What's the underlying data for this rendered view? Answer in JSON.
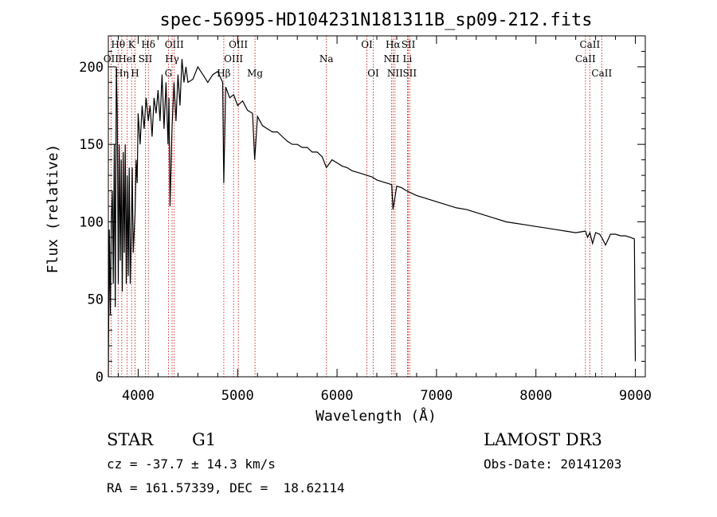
{
  "chart_data": {
    "type": "line",
    "title": "spec-56995-HD104231N181311B_sp09-212.fits",
    "xlabel": "Wavelength (Å)",
    "ylabel": "Flux (relative)",
    "xlim": [
      3700,
      9100
    ],
    "ylim": [
      0,
      220
    ],
    "xticks": [
      4000,
      5000,
      6000,
      7000,
      8000,
      9000
    ],
    "yticks": [
      0,
      50,
      100,
      150,
      200
    ],
    "grid": false,
    "series": [
      {
        "name": "spectrum",
        "x": [
          3700,
          3710,
          3720,
          3730,
          3740,
          3750,
          3760,
          3770,
          3780,
          3790,
          3800,
          3810,
          3820,
          3830,
          3840,
          3850,
          3860,
          3870,
          3880,
          3890,
          3900,
          3910,
          3920,
          3933,
          3940,
          3950,
          3968,
          3980,
          3990,
          4000,
          4020,
          4040,
          4060,
          4080,
          4101,
          4120,
          4140,
          4160,
          4180,
          4200,
          4220,
          4240,
          4260,
          4280,
          4300,
          4310,
          4320,
          4340,
          4360,
          4380,
          4400,
          4420,
          4440,
          4460,
          4480,
          4500,
          4550,
          4600,
          4650,
          4700,
          4750,
          4800,
          4850,
          4861,
          4880,
          4920,
          4960,
          5000,
          5050,
          5100,
          5150,
          5172,
          5200,
          5250,
          5300,
          5350,
          5400,
          5450,
          5500,
          5550,
          5600,
          5650,
          5700,
          5750,
          5800,
          5850,
          5893,
          5950,
          6000,
          6050,
          6100,
          6150,
          6200,
          6250,
          6300,
          6350,
          6400,
          6450,
          6500,
          6550,
          6563,
          6600,
          6650,
          6700,
          6800,
          6900,
          7000,
          7100,
          7200,
          7300,
          7400,
          7500,
          7600,
          7700,
          7800,
          7900,
          8000,
          8100,
          8200,
          8300,
          8400,
          8498,
          8520,
          8542,
          8570,
          8600,
          8640,
          8662,
          8700,
          8750,
          8800,
          8850,
          8900,
          8950,
          8990,
          9000
        ],
        "values": [
          0,
          95,
          40,
          100,
          120,
          60,
          150,
          45,
          200,
          170,
          60,
          150,
          75,
          140,
          55,
          145,
          80,
          150,
          60,
          130,
          65,
          135,
          60,
          100,
          135,
          80,
          105,
          140,
          125,
          170,
          150,
          175,
          160,
          180,
          165,
          175,
          155,
          180,
          170,
          185,
          165,
          195,
          160,
          190,
          150,
          180,
          110,
          160,
          190,
          165,
          195,
          175,
          205,
          190,
          200,
          190,
          192,
          200,
          195,
          190,
          195,
          197,
          190,
          125,
          187,
          180,
          182,
          175,
          178,
          172,
          170,
          140,
          168,
          162,
          160,
          158,
          158,
          155,
          152,
          150,
          150,
          148,
          148,
          145,
          145,
          142,
          135,
          140,
          138,
          136,
          135,
          133,
          132,
          131,
          130,
          129,
          127,
          126,
          125,
          124,
          108,
          123,
          122,
          120,
          117,
          115,
          113,
          111,
          109,
          108,
          106,
          104,
          102,
          100,
          99,
          98,
          97,
          96,
          95,
          94,
          93,
          94,
          90,
          93,
          86,
          93,
          92,
          90,
          85,
          92,
          92,
          91,
          91,
          90,
          89,
          10
        ]
      }
    ],
    "lines": {
      "row1": [
        {
          "label": "Hθ",
          "x": 3798
        },
        {
          "label": "K",
          "x": 3934
        },
        {
          "label": "Hδ",
          "x": 4102
        },
        {
          "label": "OIII",
          "x": 4363
        },
        {
          "label": "OIII",
          "x": 5007
        },
        {
          "label": "OI",
          "x": 6300
        },
        {
          "label": "Hα",
          "x": 6563
        },
        {
          "label": "SII",
          "x": 6717
        },
        {
          "label": "CaII",
          "x": 8542
        }
      ],
      "row2": [
        {
          "label": "OII",
          "x": 3727
        },
        {
          "label": "HeI",
          "x": 3889
        },
        {
          "label": "SII",
          "x": 4072
        },
        {
          "label": "Hγ",
          "x": 4341
        },
        {
          "label": "OIII",
          "x": 4959
        },
        {
          "label": "Na",
          "x": 5893
        },
        {
          "label": "NII",
          "x": 6548
        },
        {
          "label": "Li",
          "x": 6708
        },
        {
          "label": "CaII",
          "x": 8498
        }
      ],
      "row3": [
        {
          "label": "Hη",
          "x": 3835
        },
        {
          "label": "H",
          "x": 3968
        },
        {
          "label": "G",
          "x": 4304
        },
        {
          "label": "Hβ",
          "x": 4861
        },
        {
          "label": "Mg",
          "x": 5175
        },
        {
          "label": "OI",
          "x": 6364
        },
        {
          "label": "NII",
          "x": 6583
        },
        {
          "label": "SII",
          "x": 6731
        },
        {
          "label": "CaII",
          "x": 8662
        }
      ]
    }
  },
  "info": {
    "object_class": "STAR",
    "subclass": "G1",
    "survey": "LAMOST DR3",
    "redshift_line": "cz = -37.7 ± 14.3 km/s",
    "obs_date_line": "Obs-Date: 20141203",
    "coords_line": "RA = 161.57339, DEC =  18.62114"
  },
  "colors": {
    "spectrum": "#000000",
    "line_markers": "#cc0000",
    "axes": "#000000"
  }
}
